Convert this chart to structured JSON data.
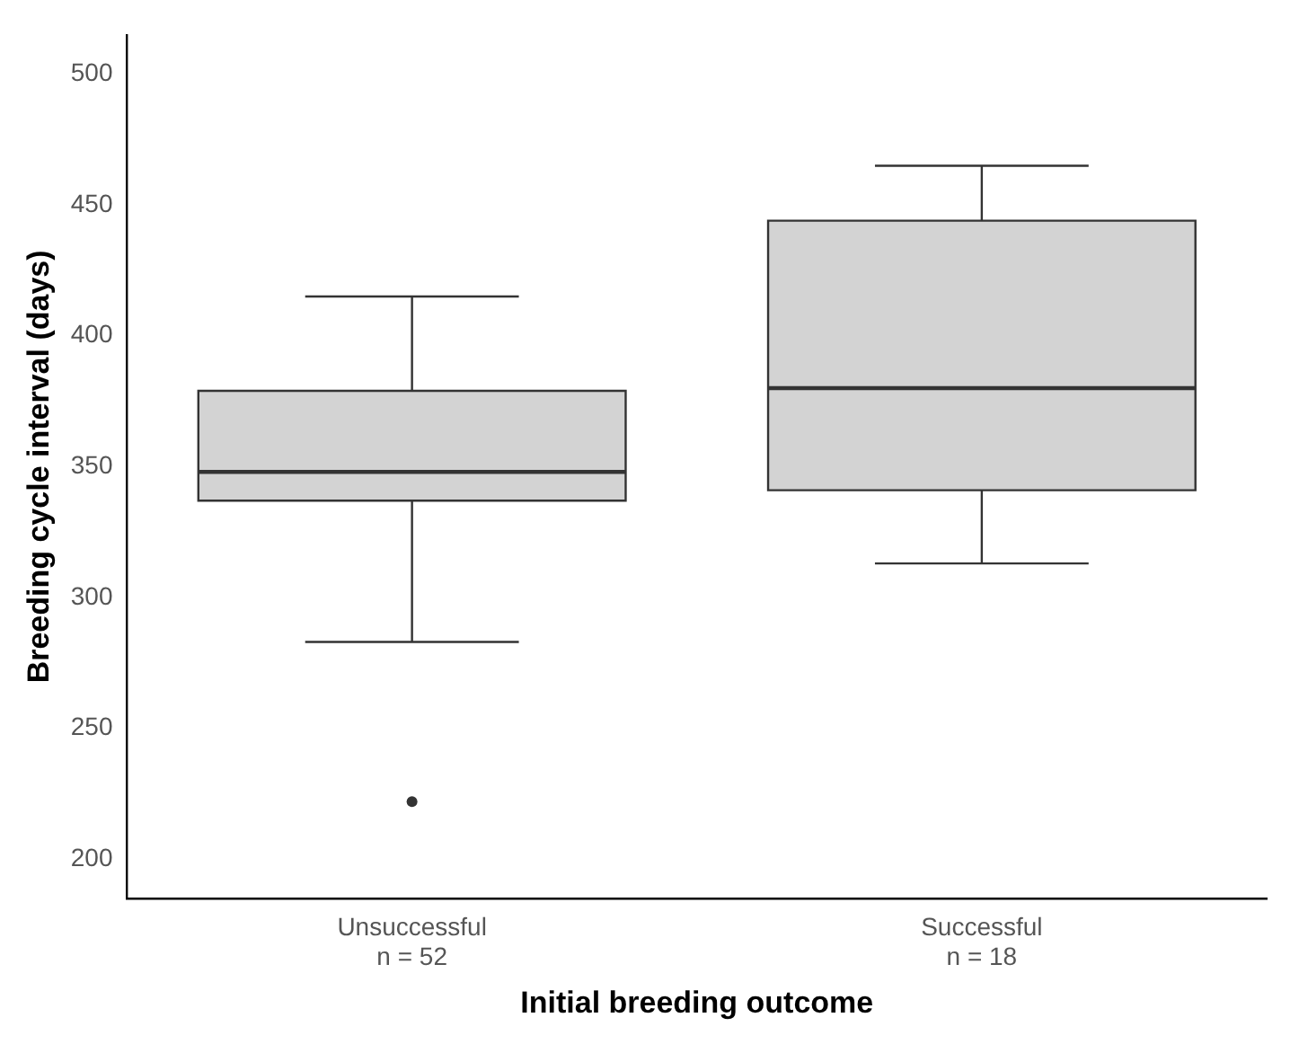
{
  "chart_data": {
    "type": "box",
    "xlabel": "Initial breeding outcome",
    "ylabel": "Breeding cycle interval (days)",
    "categories": [
      "Unsuccessful\nn = 52",
      "Successful\nn = 18"
    ],
    "boxes": [
      {
        "low": 283,
        "q1": 337,
        "median": 348,
        "q3": 379,
        "high": 415,
        "outliers": [
          222
        ]
      },
      {
        "low": 313,
        "q1": 341,
        "median": 380,
        "q3": 444,
        "high": 465
      }
    ],
    "color": "#d3d3d3",
    "ylim": [
      185,
      515
    ],
    "yticks": [
      200,
      250,
      300,
      350,
      400,
      450,
      500
    ],
    "grid": false
  }
}
